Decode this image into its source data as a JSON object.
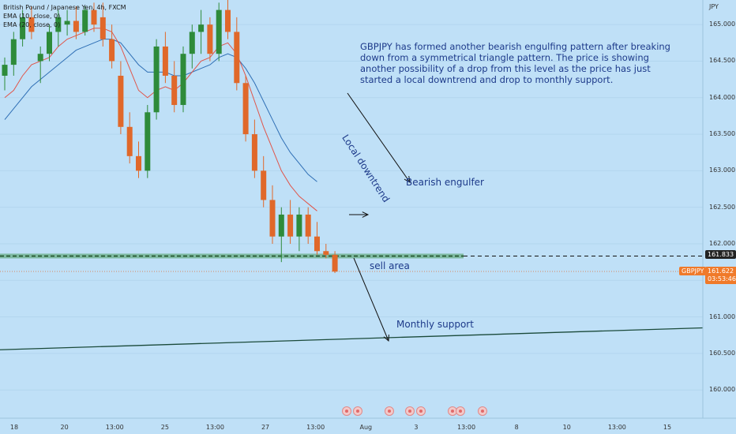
{
  "chart_data": {
    "type": "candlestick",
    "symbol_legend": "British Pound / Japanese Yen, 4h, FXCM",
    "indicator_legends": [
      "EMA (10, close, 0)",
      "EMA (20, close, 0)"
    ],
    "currency": "JPY",
    "y_ticks": [
      "165.000",
      "164.500",
      "164.000",
      "163.500",
      "163.000",
      "162.500",
      "162.000",
      "161.500",
      "161.000",
      "160.500",
      "160.000"
    ],
    "ylim": [
      159.7,
      165.25
    ],
    "x_ticks": [
      "18",
      "20",
      "13:00",
      "25",
      "13:00",
      "27",
      "13:00",
      "Aug",
      "3",
      "13:00",
      "8",
      "10",
      "13:00",
      "15"
    ],
    "candles": [
      [
        164.3,
        164.55,
        164.1,
        164.45
      ],
      [
        164.45,
        164.9,
        164.3,
        164.8
      ],
      [
        164.8,
        165.2,
        164.7,
        165.1
      ],
      [
        165.1,
        165.25,
        164.8,
        164.9
      ],
      [
        164.5,
        164.7,
        164.2,
        164.6
      ],
      [
        164.6,
        165.0,
        164.5,
        164.9
      ],
      [
        164.9,
        165.2,
        164.7,
        165.1
      ],
      [
        165.0,
        165.2,
        164.85,
        165.05
      ],
      [
        165.05,
        165.25,
        164.8,
        164.9
      ],
      [
        164.9,
        165.25,
        164.85,
        165.2
      ],
      [
        165.2,
        165.3,
        164.9,
        165.0
      ],
      [
        165.1,
        165.3,
        164.7,
        164.8
      ],
      [
        164.8,
        165.0,
        164.4,
        164.5
      ],
      [
        164.3,
        164.5,
        163.5,
        163.6
      ],
      [
        163.6,
        163.8,
        163.1,
        163.2
      ],
      [
        163.2,
        163.4,
        162.9,
        163.0
      ],
      [
        163.0,
        163.9,
        162.9,
        163.8
      ],
      [
        163.8,
        164.8,
        163.7,
        164.7
      ],
      [
        164.7,
        164.9,
        164.2,
        164.3
      ],
      [
        164.3,
        164.5,
        163.8,
        163.9
      ],
      [
        163.9,
        164.7,
        163.8,
        164.6
      ],
      [
        164.6,
        165.0,
        164.4,
        164.9
      ],
      [
        164.9,
        165.2,
        164.6,
        165.0
      ],
      [
        165.0,
        165.1,
        164.5,
        164.6
      ],
      [
        164.6,
        165.3,
        164.5,
        165.2
      ],
      [
        165.2,
        165.6,
        164.8,
        164.9
      ],
      [
        164.9,
        165.1,
        164.1,
        164.2
      ],
      [
        164.2,
        164.3,
        163.4,
        163.5
      ],
      [
        163.5,
        163.7,
        162.9,
        163.0
      ],
      [
        163.0,
        163.2,
        162.5,
        162.6
      ],
      [
        162.6,
        162.8,
        162.0,
        162.1
      ],
      [
        162.1,
        162.5,
        161.75,
        162.4
      ],
      [
        162.4,
        162.6,
        162.0,
        162.1
      ],
      [
        162.1,
        162.5,
        161.9,
        162.4
      ],
      [
        162.4,
        162.5,
        162.0,
        162.1
      ],
      [
        162.1,
        162.3,
        161.85,
        161.9
      ],
      [
        161.9,
        162.0,
        161.8,
        161.85
      ],
      [
        161.85,
        161.9,
        161.6,
        161.62
      ]
    ],
    "ema10": [
      164.0,
      164.1,
      164.3,
      164.45,
      164.5,
      164.55,
      164.7,
      164.8,
      164.85,
      164.9,
      164.95,
      164.95,
      164.9,
      164.7,
      164.4,
      164.1,
      164.0,
      164.1,
      164.15,
      164.1,
      164.2,
      164.35,
      164.5,
      164.55,
      164.7,
      164.75,
      164.6,
      164.3,
      163.95,
      163.6,
      163.3,
      163.0,
      162.8,
      162.65,
      162.55,
      162.45
    ],
    "ema20": [
      163.7,
      163.85,
      164.0,
      164.15,
      164.25,
      164.35,
      164.45,
      164.55,
      164.65,
      164.7,
      164.75,
      164.8,
      164.8,
      164.75,
      164.6,
      164.45,
      164.35,
      164.35,
      164.35,
      164.3,
      164.3,
      164.35,
      164.4,
      164.45,
      164.55,
      164.6,
      164.55,
      164.4,
      164.2,
      163.95,
      163.7,
      163.45,
      163.25,
      163.1,
      162.95,
      162.85
    ],
    "sell_area_level": 161.833,
    "current_price": "161.622",
    "current_price_level": 161.622,
    "countdown": "03:53:46",
    "symbol_tag": "GBPJPY",
    "support_line": {
      "from": [
        0,
        160.55
      ],
      "to": [
        1,
        160.85
      ]
    },
    "annotations": {
      "note": "GBPJPY has formed another bearish engulfing pattern after breaking down from a symmetrical triangle pattern. The price is showing another possibility of a drop from this level as the price has just started a local downtrend and drop to monthly support.",
      "local_downtrend": "Local downtrend",
      "bearish_engulfer": "Bearish engulfer",
      "sell_area": "sell area",
      "monthly_support": "Monthly support"
    },
    "colors": {
      "background": "#bfe0f7",
      "up": "#2e8b3a",
      "down": "#e0682a",
      "ema10": "#e0554a",
      "ema20": "#2f6fb5",
      "annot": "#1d3a8a",
      "price_tag": "#f07a2a",
      "level_tag": "#222222"
    }
  }
}
